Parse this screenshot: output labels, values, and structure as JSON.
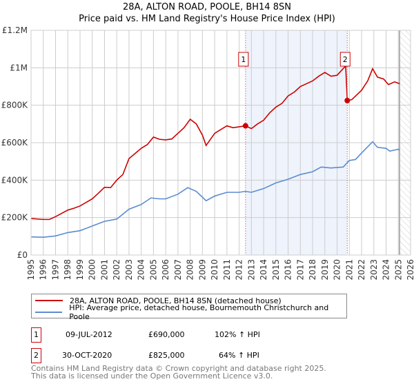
{
  "chart_data": {
    "type": "line",
    "title": "28A, ALTON ROAD, POOLE, BH14 8SN",
    "subtitle": "Price paid vs. HM Land Registry's House Price Index (HPI)",
    "xlim": [
      1995,
      2026
    ],
    "ylim": [
      0,
      1200000
    ],
    "x_ticks": [
      "1995",
      "1996",
      "1997",
      "1998",
      "1999",
      "2000",
      "2001",
      "2002",
      "2003",
      "2004",
      "2005",
      "2006",
      "2007",
      "2008",
      "2009",
      "2010",
      "2011",
      "2012",
      "2013",
      "2014",
      "2015",
      "2016",
      "2017",
      "2018",
      "2019",
      "2020",
      "2021",
      "2022",
      "2023",
      "2024",
      "2025",
      "2026"
    ],
    "y_ticks": [
      {
        "v": 0,
        "label": "£0"
      },
      {
        "v": 200000,
        "label": "£200K"
      },
      {
        "v": 400000,
        "label": "£400K"
      },
      {
        "v": 600000,
        "label": "£600K"
      },
      {
        "v": 800000,
        "label": "£800K"
      },
      {
        "v": 1000000,
        "label": "£1M"
      },
      {
        "v": 1200000,
        "label": "£1.2M"
      }
    ],
    "grid": true,
    "shaded_period": [
      2012.52,
      2020.83
    ],
    "forecast_from": 2025.1,
    "series": [
      {
        "name": "28A, ALTON ROAD, POOLE, BH14 8SN (detached house)",
        "color": "#cc0000",
        "points": [
          [
            1995,
            195000
          ],
          [
            1996,
            190000
          ],
          [
            1996.5,
            190000
          ],
          [
            1997,
            205000
          ],
          [
            1998,
            240000
          ],
          [
            1998.5,
            250000
          ],
          [
            1999,
            262000
          ],
          [
            2000,
            300000
          ],
          [
            2000.5,
            330000
          ],
          [
            2001,
            362000
          ],
          [
            2001.5,
            360000
          ],
          [
            2002,
            400000
          ],
          [
            2002.5,
            430000
          ],
          [
            2003,
            515000
          ],
          [
            2004,
            570000
          ],
          [
            2004.5,
            590000
          ],
          [
            2005,
            630000
          ],
          [
            2005.5,
            618000
          ],
          [
            2006,
            615000
          ],
          [
            2006.5,
            620000
          ],
          [
            2007,
            650000
          ],
          [
            2007.5,
            680000
          ],
          [
            2008,
            725000
          ],
          [
            2008.5,
            700000
          ],
          [
            2009,
            640000
          ],
          [
            2009.3,
            585000
          ],
          [
            2010,
            650000
          ],
          [
            2010.5,
            670000
          ],
          [
            2011,
            690000
          ],
          [
            2011.5,
            680000
          ],
          [
            2012,
            685000
          ],
          [
            2012.52,
            690000
          ],
          [
            2013,
            675000
          ],
          [
            2013.5,
            700000
          ],
          [
            2014,
            720000
          ],
          [
            2014.5,
            760000
          ],
          [
            2015,
            790000
          ],
          [
            2015.5,
            810000
          ],
          [
            2016,
            850000
          ],
          [
            2016.5,
            870000
          ],
          [
            2017,
            900000
          ],
          [
            2017.5,
            915000
          ],
          [
            2018,
            930000
          ],
          [
            2018.5,
            955000
          ],
          [
            2019,
            975000
          ],
          [
            2019.5,
            955000
          ],
          [
            2020,
            960000
          ],
          [
            2020.7,
            1010000
          ],
          [
            2020.83,
            825000
          ],
          [
            2021.2,
            830000
          ],
          [
            2022,
            880000
          ],
          [
            2022.5,
            930000
          ],
          [
            2022.9,
            995000
          ],
          [
            2023.3,
            950000
          ],
          [
            2023.8,
            940000
          ],
          [
            2024.2,
            910000
          ],
          [
            2024.7,
            925000
          ],
          [
            2025.1,
            915000
          ]
        ]
      },
      {
        "name": "HPI: Average price, detached house, Bournemouth Christchurch and Poole",
        "color": "#5b8bd0",
        "points": [
          [
            1995,
            97000
          ],
          [
            1996,
            95000
          ],
          [
            1997,
            102000
          ],
          [
            1998,
            120000
          ],
          [
            1999,
            130000
          ],
          [
            2000,
            155000
          ],
          [
            2001,
            180000
          ],
          [
            2002,
            192000
          ],
          [
            2003,
            245000
          ],
          [
            2004,
            270000
          ],
          [
            2004.8,
            305000
          ],
          [
            2005.5,
            300000
          ],
          [
            2006,
            300000
          ],
          [
            2007,
            325000
          ],
          [
            2007.8,
            360000
          ],
          [
            2008.5,
            340000
          ],
          [
            2009.3,
            290000
          ],
          [
            2010,
            315000
          ],
          [
            2011,
            335000
          ],
          [
            2012,
            335000
          ],
          [
            2012.5,
            340000
          ],
          [
            2013,
            335000
          ],
          [
            2014,
            355000
          ],
          [
            2015,
            385000
          ],
          [
            2016,
            405000
          ],
          [
            2017,
            430000
          ],
          [
            2018,
            445000
          ],
          [
            2018.7,
            470000
          ],
          [
            2019.5,
            465000
          ],
          [
            2020.5,
            470000
          ],
          [
            2021,
            505000
          ],
          [
            2021.5,
            510000
          ],
          [
            2022,
            545000
          ],
          [
            2022.9,
            605000
          ],
          [
            2023.3,
            575000
          ],
          [
            2024,
            570000
          ],
          [
            2024.3,
            555000
          ],
          [
            2025,
            565000
          ],
          [
            2025.1,
            560000
          ]
        ]
      }
    ],
    "sales": [
      {
        "id": "1",
        "x": 2012.52,
        "value": 690000,
        "date": "09-JUL-2012",
        "price": "£690,000",
        "hpi": "102% ↑ HPI"
      },
      {
        "id": "2",
        "x": 2020.83,
        "value": 825000,
        "date": "30-OCT-2020",
        "price": "£825,000",
        "hpi": "64% ↑ HPI"
      }
    ]
  },
  "footer": {
    "line1": "Contains HM Land Registry data © Crown copyright and database right 2025.",
    "line2": "This data is licensed under the Open Government Licence v3.0."
  }
}
